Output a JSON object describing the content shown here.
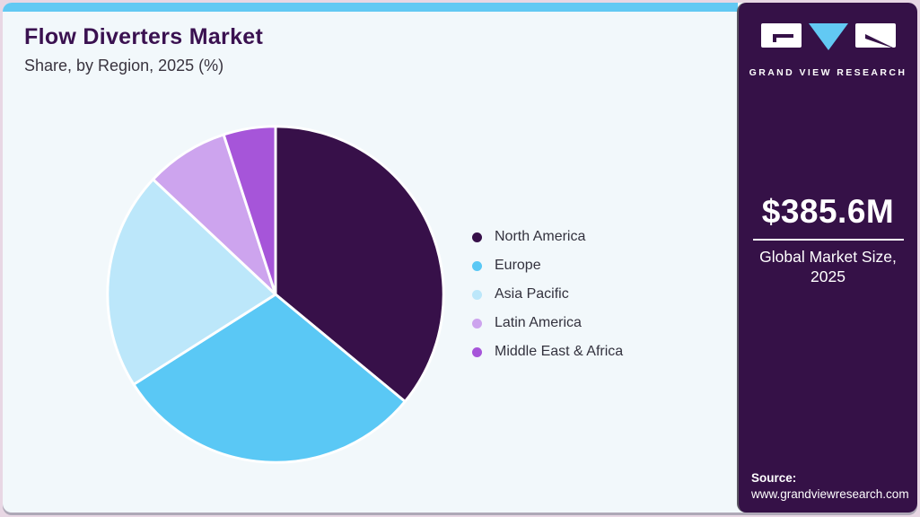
{
  "header": {
    "title": "Flow Diverters Market",
    "subtitle": "Share, by Region, 2025 (%)"
  },
  "chart_data": {
    "type": "pie",
    "title": "Flow Diverters Market Share, by Region, 2025 (%)",
    "unit": "%",
    "categories": [
      "North America",
      "Europe",
      "Asia Pacific",
      "Latin America",
      "Middle East & Africa"
    ],
    "values": [
      36,
      30,
      21,
      8,
      5
    ],
    "colors": [
      "#371049",
      "#5ac8f5",
      "#bce7fa",
      "#cda4ee",
      "#a655d9"
    ],
    "start_angle": "12 o'clock",
    "direction": "clockwise",
    "legend_position": "right",
    "slice_gap_color": "#ffffff"
  },
  "panel": {
    "logo_text": "GRAND VIEW RESEARCH",
    "market_size_value": "$385.6M",
    "market_size_label": "Global Market Size, 2025",
    "source_label": "Source:",
    "source_url": "www.grandviewresearch.com"
  },
  "colors": {
    "accent_bar": "#62c9f3",
    "panel_bg": "#351147",
    "card_bg": "#f2f8fb",
    "frame": "#e8d7e4",
    "title_text": "#3a1150",
    "subtitle_text": "#39343f",
    "legend_text": "#33323e"
  }
}
